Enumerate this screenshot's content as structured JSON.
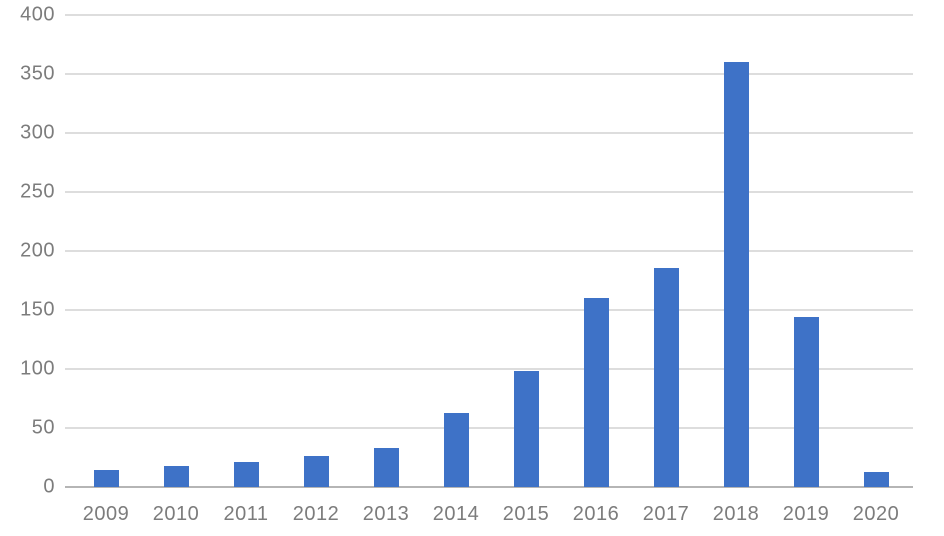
{
  "chart_data": {
    "type": "bar",
    "categories": [
      "2009",
      "2010",
      "2011",
      "2012",
      "2013",
      "2014",
      "2015",
      "2016",
      "2017",
      "2018",
      "2019",
      "2020"
    ],
    "values": [
      14,
      18,
      21,
      26,
      33,
      63,
      98,
      160,
      186,
      360,
      144,
      13
    ],
    "title": "",
    "xlabel": "",
    "ylabel": "",
    "ylim": [
      0,
      400
    ],
    "ytick_interval": 50,
    "ytick_labels": [
      "0",
      "50",
      "100",
      "150",
      "200",
      "250",
      "300",
      "350",
      "400"
    ],
    "grid": true,
    "legend": false,
    "colors": {
      "bar": "#3e72c7",
      "gridline": "#dddddd",
      "baseline": "#b5b5b5",
      "axis_label": "#7c7c7c",
      "background": "#ffffff"
    }
  }
}
